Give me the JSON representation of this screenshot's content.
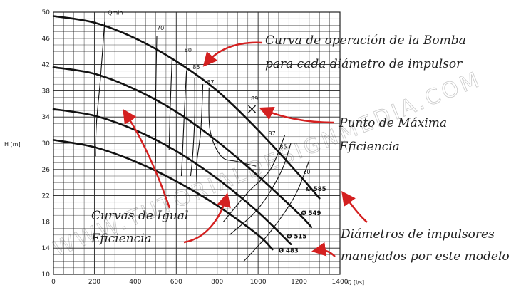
{
  "chart_data": {
    "type": "line",
    "title": "",
    "xlabel": "Q [l/s]",
    "ylabel": "H [m]",
    "xlim": [
      0,
      1400
    ],
    "ylim": [
      10,
      50
    ],
    "x_ticks": [
      "0",
      "200",
      "400",
      "600",
      "800",
      "1000",
      "1200",
      "1400"
    ],
    "y_ticks": [
      "10",
      "14",
      "18",
      "22",
      "26",
      "30",
      "34",
      "38",
      "42",
      "46",
      "50"
    ],
    "grid": true,
    "watermark": "WWW.TUTORIALDESIGNMEDIA.COM",
    "series": [
      {
        "name": "Ø 585",
        "x": [
          0,
          200,
          400,
          600,
          800,
          1000,
          1200,
          1300
        ],
        "y": [
          49.4,
          48.4,
          46,
          42.5,
          38,
          32,
          25.2,
          21.6
        ]
      },
      {
        "name": "Ø 549",
        "x": [
          0,
          200,
          400,
          600,
          800,
          1000,
          1200,
          1260
        ],
        "y": [
          41.6,
          40.6,
          38.2,
          34.8,
          30.3,
          25,
          19.2,
          17.2
        ]
      },
      {
        "name": "Ø 515",
        "x": [
          0,
          200,
          400,
          600,
          800,
          1000,
          1160
        ],
        "y": [
          35.2,
          34.2,
          32,
          28.8,
          24.6,
          19.5,
          14.6
        ]
      },
      {
        "name": "Ø 483",
        "x": [
          0,
          200,
          400,
          600,
          800,
          1000,
          1070
        ],
        "y": [
          30.5,
          29.4,
          27.2,
          24.2,
          20.5,
          16,
          13.8
        ]
      }
    ],
    "efficiency_labels": [
      "Qmin",
      "70",
      "80",
      "85",
      "87",
      "89",
      "87",
      "85",
      "80"
    ],
    "diameter_labels": [
      "Ø 585",
      "Ø 549",
      "Ø 515",
      "Ø 483"
    ],
    "best_efficiency_point": {
      "x": 970,
      "y": 35.2
    }
  },
  "annotations": {
    "operation_curve_line1": "Curva de operación de la Bomba",
    "operation_curve_line2": "para cada diámetro de impulsor",
    "max_efficiency_line1": "Punto de Máxima",
    "max_efficiency_line2": "Eficiencia",
    "iso_efficiency_line1": "Curvas de Igual",
    "iso_efficiency_line2": "Eficiencia",
    "diameters_line1": "Diámetros de impulsores",
    "diameters_line2": "manejados por este modelo"
  },
  "colors": {
    "curve": "#111111",
    "grid": "#222222",
    "arrow": "#d42020"
  }
}
